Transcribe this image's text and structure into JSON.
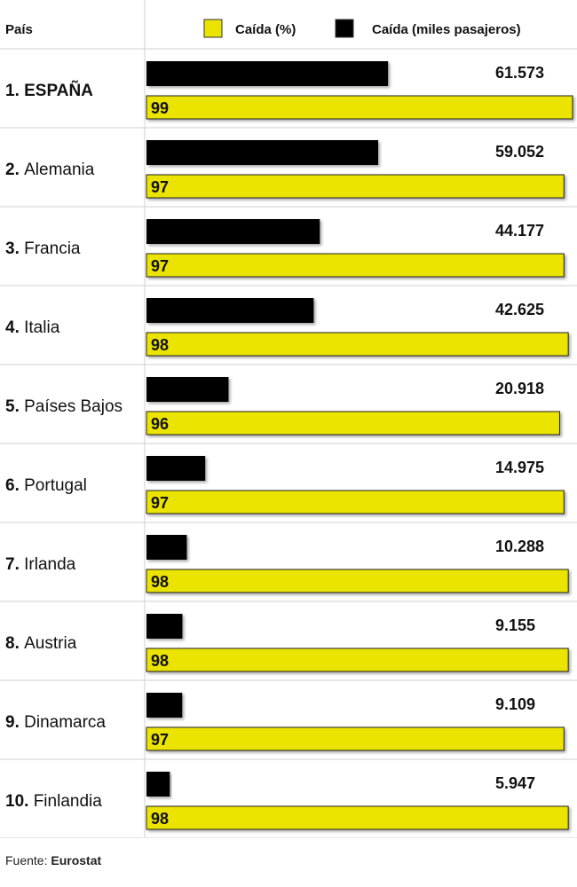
{
  "header": {
    "country_label": "País"
  },
  "chart_data": {
    "type": "bar",
    "orientation": "horizontal",
    "categories": [
      {
        "rank": "1.",
        "name": "ESPAÑA",
        "bold": true
      },
      {
        "rank": "2.",
        "name": "Alemania",
        "bold": false
      },
      {
        "rank": "3.",
        "name": "Francia",
        "bold": false
      },
      {
        "rank": "4.",
        "name": "Italia",
        "bold": false
      },
      {
        "rank": "5.",
        "name": "Países Bajos",
        "bold": false
      },
      {
        "rank": "6.",
        "name": "Portugal",
        "bold": false
      },
      {
        "rank": "7.",
        "name": "Irlanda",
        "bold": false
      },
      {
        "rank": "8.",
        "name": "Austria",
        "bold": false
      },
      {
        "rank": "9.",
        "name": "Dinamarca",
        "bold": false
      },
      {
        "rank": "10.",
        "name": "Finlandia",
        "bold": false
      }
    ],
    "series": [
      {
        "name": "Caída (miles pasajeros)",
        "color": "#000000",
        "values": [
          61573,
          59052,
          44177,
          42625,
          20918,
          14975,
          10288,
          9155,
          9109,
          5947
        ],
        "labels": [
          "61.573",
          "59.052",
          "44.177",
          "42.625",
          "20.918",
          "14.975",
          "10.288",
          "9.155",
          "9.109",
          "5.947"
        ],
        "max": 100000
      },
      {
        "name": "Caída (%)",
        "color": "#ebe300",
        "values": [
          99,
          97,
          97,
          98,
          96,
          97,
          98,
          98,
          97,
          98
        ],
        "labels": [
          "99",
          "97",
          "97",
          "98",
          "96",
          "97",
          "98",
          "98",
          "97",
          "98"
        ],
        "max": 99
      }
    ],
    "legend": {
      "placement": "top",
      "entries": [
        {
          "label": "Caída (%)",
          "color": "#ebe300"
        },
        {
          "label": "Caída (miles pasajeros)",
          "color": "#000000"
        }
      ]
    }
  },
  "footer": {
    "source_prefix": "Fuente: ",
    "source_name": "Eurostat"
  }
}
